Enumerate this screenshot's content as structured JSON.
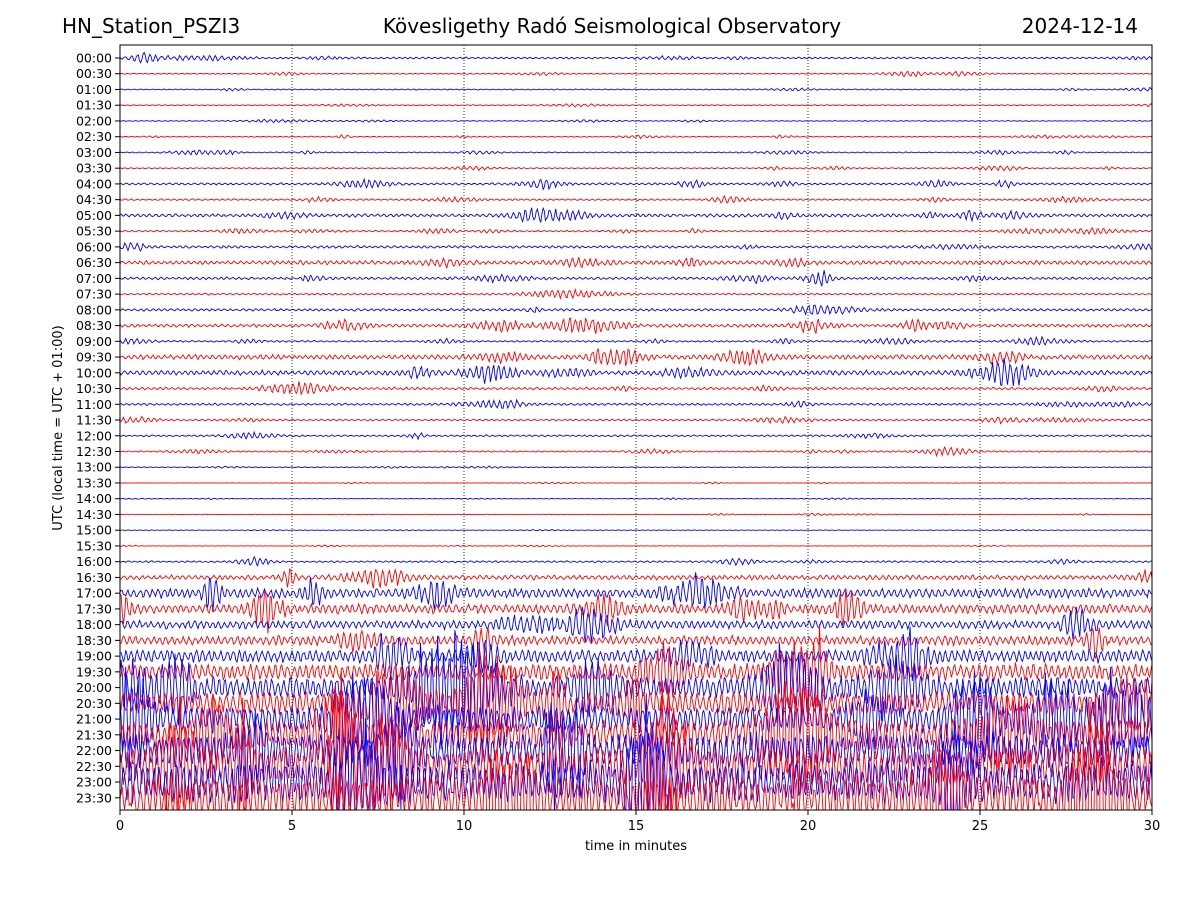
{
  "header": {
    "station": "HN_Station_PSZI3",
    "observatory": "Kövesligethy Radó Seismological Observatory",
    "date": "2024-12-14"
  },
  "chart_data": {
    "type": "line",
    "title": "Kövesligethy Radó Seismological Observatory",
    "xlabel": "time in minutes",
    "ylabel": "UTC (local time = UTC + 01:00)",
    "xlim": [
      0,
      30
    ],
    "x_ticks": [
      "0",
      "5",
      "10",
      "15",
      "20",
      "25",
      "30"
    ],
    "x_tick_values": [
      0,
      5,
      10,
      15,
      20,
      25,
      30
    ],
    "row_labels": [
      "00:00",
      "00:30",
      "01:00",
      "01:30",
      "02:00",
      "02:30",
      "03:00",
      "03:30",
      "04:00",
      "04:30",
      "05:00",
      "05:30",
      "06:00",
      "06:30",
      "07:00",
      "07:30",
      "08:00",
      "08:30",
      "09:00",
      "09:30",
      "10:00",
      "10:30",
      "11:00",
      "11:30",
      "12:00",
      "12:30",
      "13:00",
      "13:30",
      "14:00",
      "14:30",
      "15:00",
      "15:30",
      "16:00",
      "16:30",
      "17:00",
      "17:30",
      "18:00",
      "18:30",
      "19:00",
      "19:30",
      "20:00",
      "20:30",
      "21:00",
      "21:30",
      "22:00",
      "22:30",
      "23:00",
      "23:30"
    ],
    "trace_colors": [
      "#0000ff",
      "#ff0000"
    ],
    "grid": "vertical dotted at 5-minute intervals",
    "relative_amplitude": [
      0.08,
      0.05,
      0.05,
      0.05,
      0.04,
      0.05,
      0.05,
      0.05,
      0.1,
      0.08,
      0.15,
      0.08,
      0.12,
      0.18,
      0.12,
      0.08,
      0.12,
      0.15,
      0.08,
      0.22,
      0.22,
      0.12,
      0.1,
      0.08,
      0.08,
      0.06,
      0.03,
      0.02,
      0.02,
      0.03,
      0.02,
      0.02,
      0.08,
      0.22,
      0.45,
      0.45,
      0.4,
      0.45,
      0.6,
      0.8,
      1.0,
      1.1,
      1.3,
      1.5,
      1.7,
      1.9,
      2.0,
      2.0
    ]
  }
}
